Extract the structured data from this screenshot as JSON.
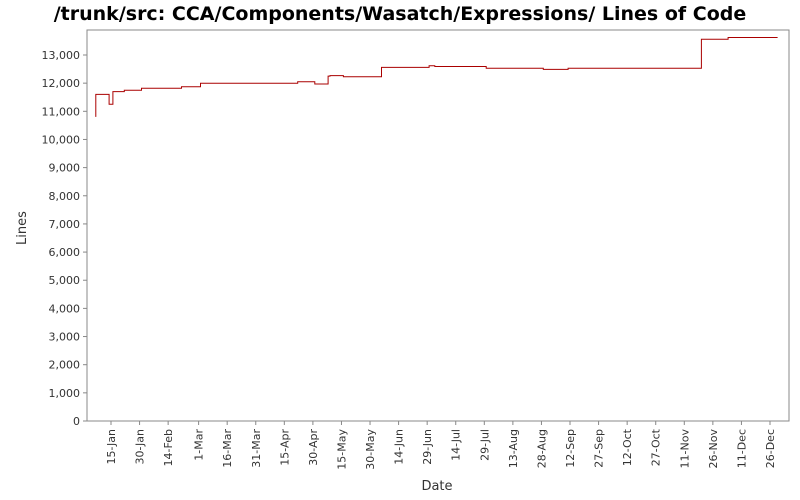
{
  "chart_data": {
    "type": "line",
    "title": "/trunk/src: CCA/Components/Wasatch/Expressions/ Lines of Code",
    "xlabel": "Date",
    "ylabel": "Lines",
    "ylim": [
      0,
      13800
    ],
    "yticks": [
      0,
      1000,
      2000,
      3000,
      4000,
      5000,
      6000,
      7000,
      8000,
      9000,
      10000,
      11000,
      12000,
      13000
    ],
    "ytick_labels": [
      "0",
      "1,000",
      "2,000",
      "3,000",
      "4,000",
      "5,000",
      "6,000",
      "7,000",
      "8,000",
      "9,000",
      "10,000",
      "11,000",
      "12,000",
      "13,000"
    ],
    "xlim": [
      "2012-01-01",
      "2013-01-01"
    ],
    "xticks": [
      "2012-01-15",
      "2012-01-30",
      "2012-02-14",
      "2012-03-01",
      "2012-03-16",
      "2012-03-31",
      "2012-04-15",
      "2012-04-30",
      "2012-05-15",
      "2012-05-30",
      "2012-06-14",
      "2012-06-29",
      "2012-07-14",
      "2012-07-29",
      "2012-08-13",
      "2012-08-28",
      "2012-09-12",
      "2012-09-27",
      "2012-10-12",
      "2012-10-27",
      "2012-11-11",
      "2012-11-26",
      "2012-12-11",
      "2012-12-26"
    ],
    "xtick_labels": [
      "15-Jan",
      "30-Jan",
      "14-Feb",
      "1-Mar",
      "16-Mar",
      "31-Mar",
      "15-Apr",
      "30-Apr",
      "15-May",
      "30-May",
      "14-Jun",
      "29-Jun",
      "14-Jul",
      "29-Jul",
      "13-Aug",
      "28-Aug",
      "12-Sep",
      "27-Sep",
      "12-Oct",
      "27-Oct",
      "11-Nov",
      "26-Nov",
      "11-Dec",
      "26-Dec"
    ],
    "grid": false,
    "series": [
      {
        "color": "#aa0000",
        "x": [
          "2012-01-07",
          "2012-01-07",
          "2012-01-14",
          "2012-01-14",
          "2012-01-16",
          "2012-01-16",
          "2012-01-22",
          "2012-01-22",
          "2012-01-31",
          "2012-01-31",
          "2012-02-21",
          "2012-02-21",
          "2012-03-02",
          "2012-03-02",
          "2012-04-22",
          "2012-04-22",
          "2012-05-01",
          "2012-05-01",
          "2012-05-08",
          "2012-05-08",
          "2012-05-09",
          "2012-05-09",
          "2012-05-16",
          "2012-05-16",
          "2012-06-05",
          "2012-06-05",
          "2012-06-30",
          "2012-06-30",
          "2012-07-03",
          "2012-07-03",
          "2012-07-30",
          "2012-07-30",
          "2012-08-29",
          "2012-08-29",
          "2012-09-11",
          "2012-09-11",
          "2012-11-20",
          "2012-11-20",
          "2012-12-04",
          "2012-12-04",
          "2012-12-30"
        ],
        "y": [
          10800,
          11600,
          11600,
          11250,
          11250,
          11700,
          11700,
          11750,
          11750,
          11820,
          11820,
          11870,
          11870,
          12000,
          12000,
          12050,
          12050,
          11970,
          11970,
          12250,
          12250,
          12270,
          12270,
          12230,
          12230,
          12560,
          12560,
          12620,
          12620,
          12590,
          12590,
          12530,
          12530,
          12490,
          12490,
          12530,
          12530,
          13560,
          13560,
          13620,
          13620
        ]
      }
    ]
  }
}
